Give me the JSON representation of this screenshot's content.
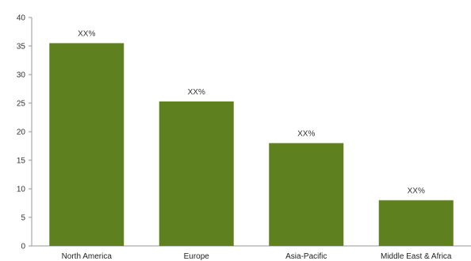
{
  "chart_data": {
    "type": "bar",
    "categories": [
      "North America",
      "Europe",
      "Asia-Pacific",
      "Middle East & Africa"
    ],
    "values": [
      35.5,
      25.3,
      18,
      8
    ],
    "data_labels": [
      "XX%",
      "XX%",
      "XX%",
      "XX%"
    ],
    "ylim": [
      0,
      40
    ],
    "yticks": [
      0,
      5,
      10,
      15,
      20,
      25,
      30,
      35,
      40
    ],
    "grid": false,
    "colors": {
      "bar": "#5f801f",
      "axis": "#9a9a9a"
    }
  }
}
